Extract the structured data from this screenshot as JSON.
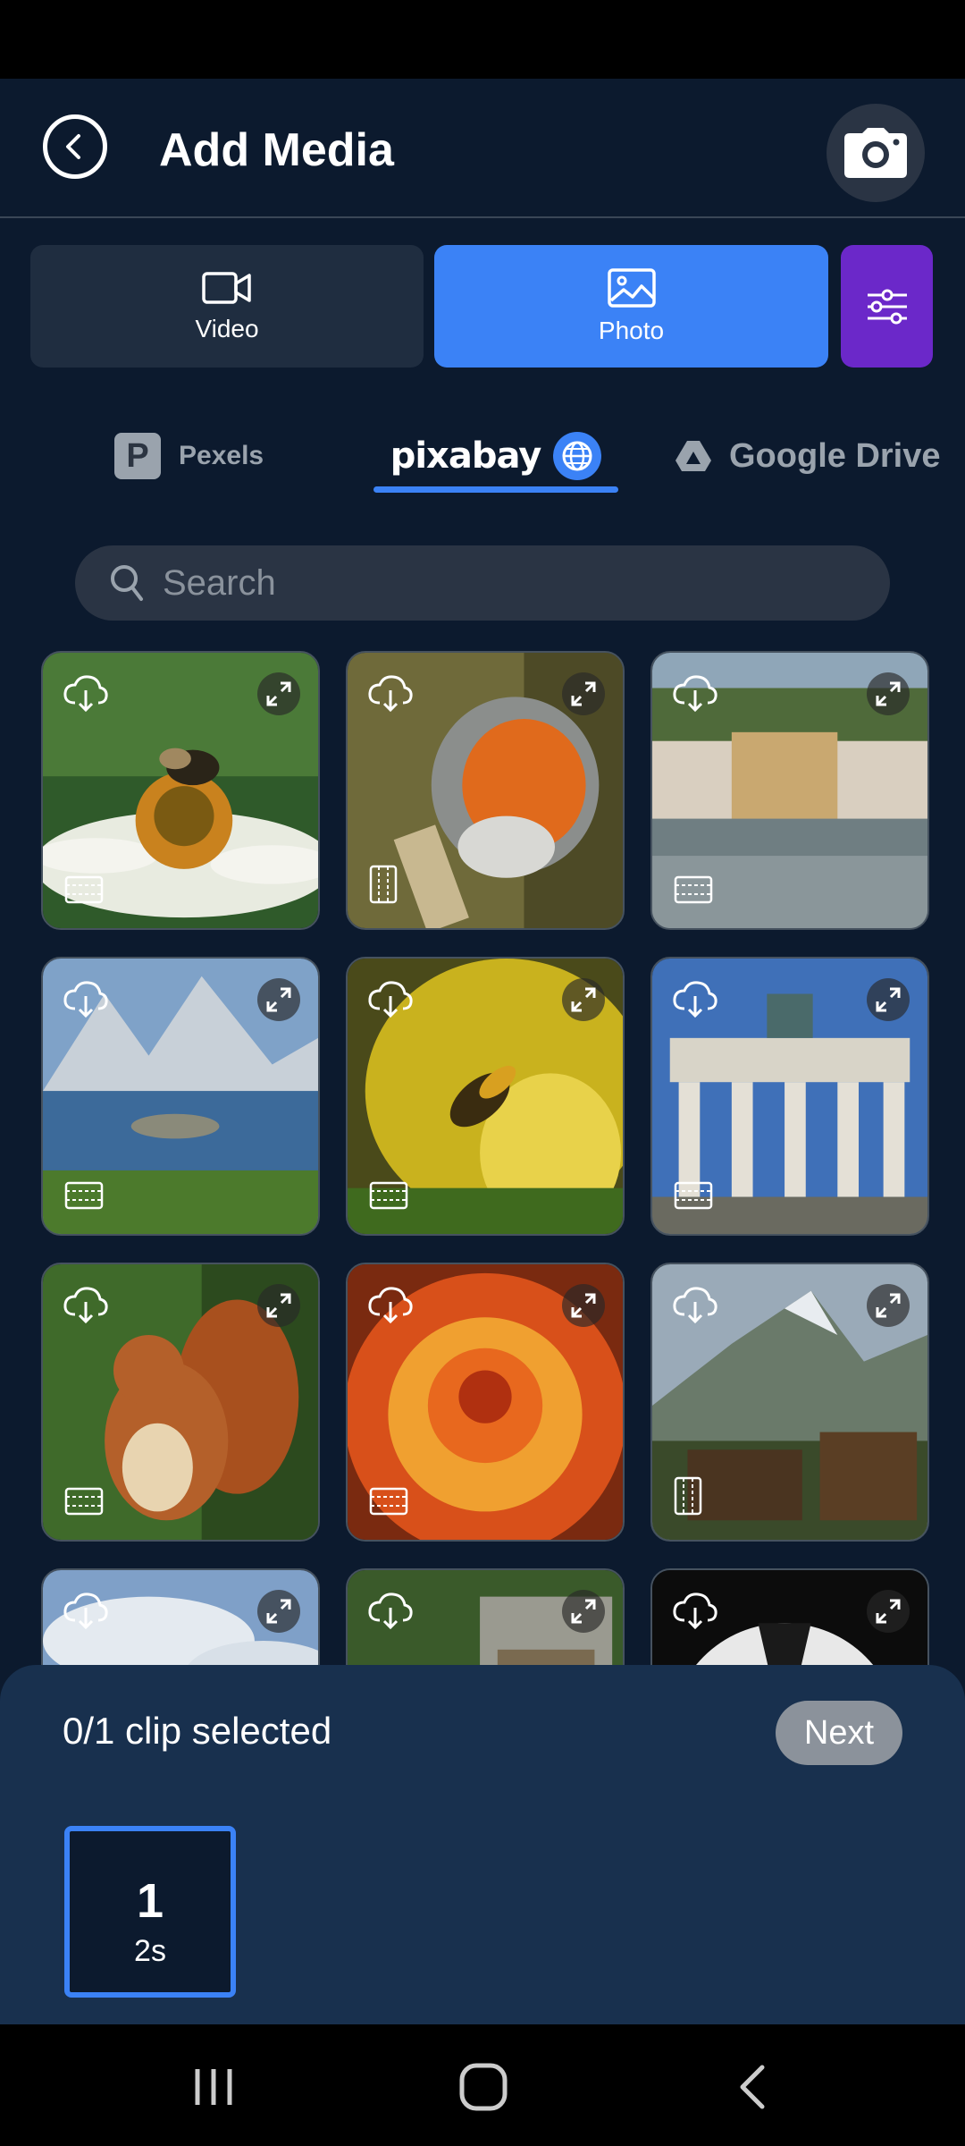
{
  "header": {
    "title": "Add Media"
  },
  "media_types": [
    {
      "label": "Video",
      "selected": false
    },
    {
      "label": "Photo",
      "selected": true
    }
  ],
  "sources": {
    "pexels": "Pexels",
    "pixabay": "pixabay",
    "google_drive": "Google Drive",
    "selected": "pixabay"
  },
  "search": {
    "placeholder": "Search",
    "value": ""
  },
  "grid": {
    "tiles": [
      {
        "subject": "bee on white flower",
        "orientation": "landscape"
      },
      {
        "subject": "robin bird on branch",
        "orientation": "portrait"
      },
      {
        "subject": "riverside buildings",
        "orientation": "landscape"
      },
      {
        "subject": "mountain lake",
        "orientation": "landscape"
      },
      {
        "subject": "wasp on yellow flower",
        "orientation": "landscape"
      },
      {
        "subject": "Brandenburg Gate",
        "orientation": "landscape"
      },
      {
        "subject": "red squirrel",
        "orientation": "landscape"
      },
      {
        "subject": "orange dahlia",
        "orientation": "landscape"
      },
      {
        "subject": "alpine village",
        "orientation": "portrait"
      },
      {
        "subject": "sky clouds",
        "orientation": "landscape"
      },
      {
        "subject": "bird house",
        "orientation": "landscape"
      },
      {
        "subject": "windmill",
        "orientation": "landscape"
      }
    ]
  },
  "selection": {
    "status": "0/1 clip selected",
    "next_label": "Next",
    "slots": [
      {
        "number": "1",
        "duration": "2s"
      }
    ]
  },
  "colors": {
    "background": "#0c1a2e",
    "accent_blue": "#3b82f6",
    "accent_purple": "#6b28c9",
    "sheet": "#18304e"
  }
}
